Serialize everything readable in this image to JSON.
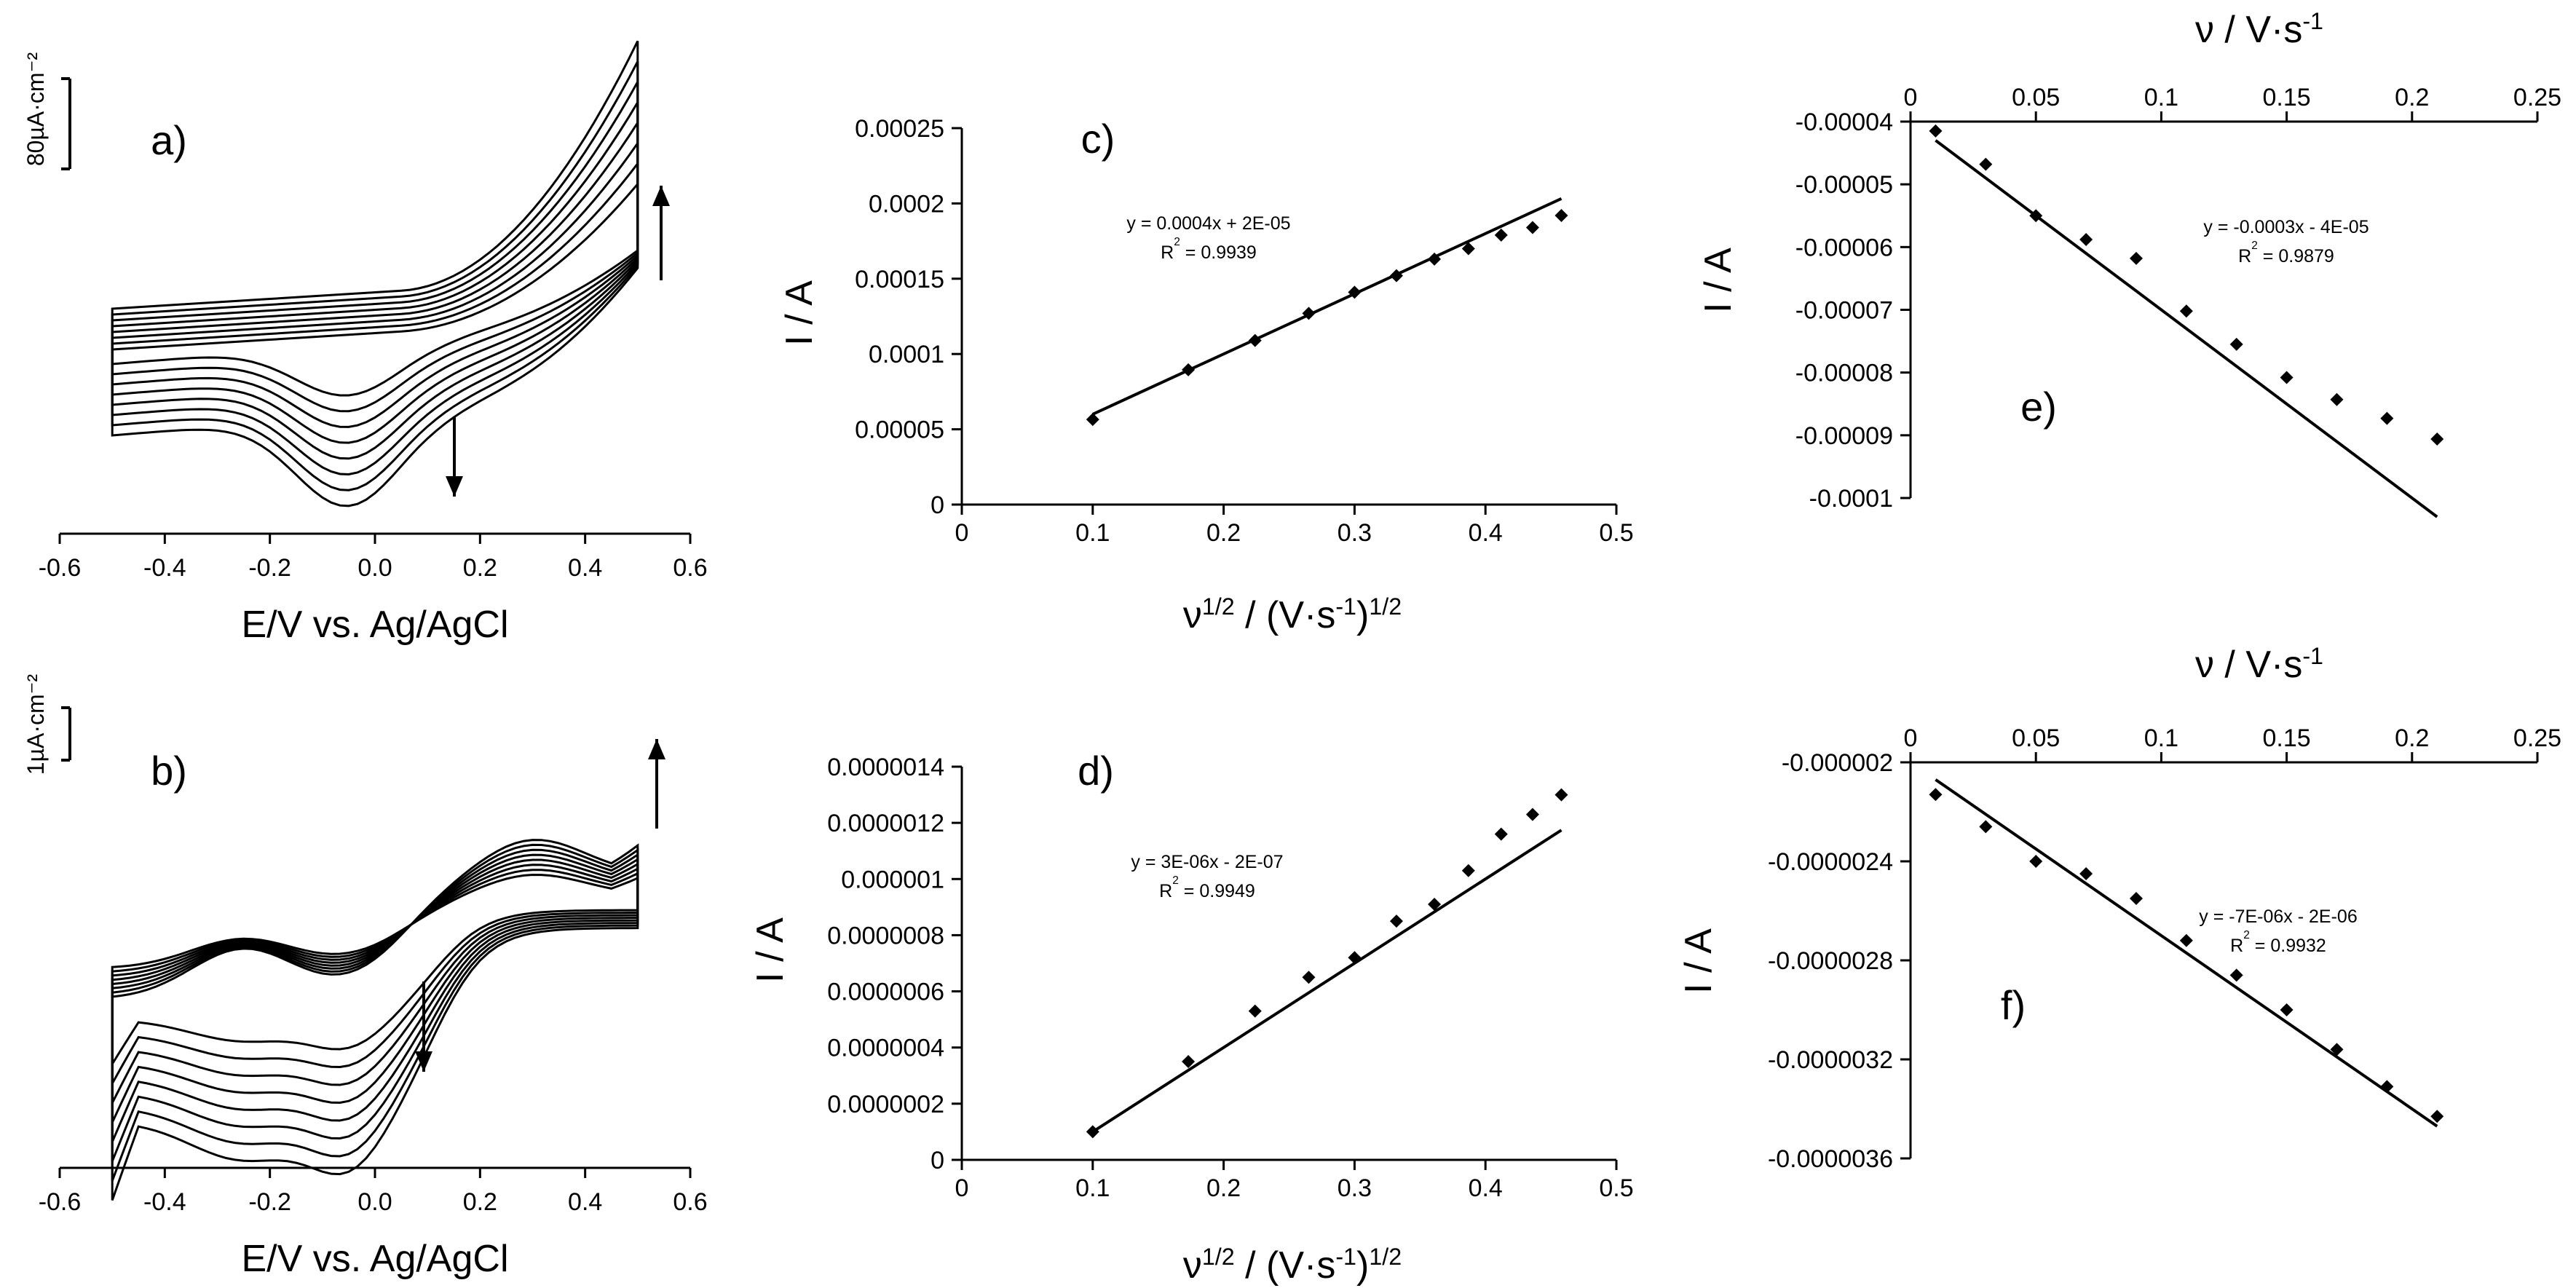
{
  "chart_data": [
    {
      "panel": "a)",
      "type": "line",
      "description_shown": "cyclic voltammograms",
      "xlabel": "E/V vs. Ag/AgCl",
      "xlim": [
        -0.6,
        0.6
      ],
      "xticks": [
        "-0.6",
        "-0.4",
        "-0.2",
        "0.0",
        "0.2",
        "0.4",
        "0.6"
      ],
      "scale_bar_label": "80µA·cm⁻²",
      "arrows": [
        "up",
        "down"
      ]
    },
    {
      "panel": "b)",
      "type": "line",
      "xlabel": "E/V vs. Ag/AgCl",
      "xlim": [
        -0.6,
        0.6
      ],
      "xticks": [
        "-0.6",
        "-0.4",
        "-0.2",
        "0.0",
        "0.2",
        "0.4",
        "0.6"
      ],
      "scale_bar_label": "1µA·cm⁻²",
      "arrows": [
        "up",
        "down"
      ]
    },
    {
      "panel": "c)",
      "type": "scatter",
      "xlabel_main": "ν",
      "xlabel_sup": "1/2",
      "xlabel_rest": "/ (V·s",
      "xlabel_sup2": "-1",
      "xlabel_end": ")",
      "xlabel_sup3": "1/2",
      "ylabel": "I / A",
      "xlim": [
        0,
        0.5
      ],
      "ylim": [
        0,
        0.00025
      ],
      "xticks": [
        "0",
        "0.1",
        "0.2",
        "0.3",
        "0.4",
        "0.5"
      ],
      "yticks": [
        "0",
        "0.00005",
        "0.0001",
        "0.00015",
        "0.0002",
        "0.00025"
      ],
      "x": [
        0.1,
        0.173,
        0.224,
        0.265,
        0.3,
        0.332,
        0.361,
        0.387,
        0.412,
        0.436,
        0.458
      ],
      "y": [
        5.65e-05,
        8.95e-05,
        0.000109,
        0.000127,
        0.000141,
        0.000152,
        0.000163,
        0.00017,
        0.000179,
        0.000184,
        0.000192
      ],
      "trendline": {
        "slope": 0.0004,
        "intercept": 2e-05
      },
      "equation": "y = 0.0004x + 2E-05",
      "r2_label": "R",
      "r2_sup": "2",
      "r2_value": " = 0.9939"
    },
    {
      "panel": "d)",
      "type": "scatter",
      "xlabel_main": "ν",
      "xlabel_sup": "1/2",
      "xlabel_rest": "/ (V·s",
      "xlabel_sup2": "-1",
      "xlabel_end": ")",
      "xlabel_sup3": "1/2",
      "ylabel": "I / A",
      "xlim": [
        0,
        0.5
      ],
      "ylim": [
        0,
        1.4e-06
      ],
      "xticks": [
        "0",
        "0.1",
        "0.2",
        "0.3",
        "0.4",
        "0.5"
      ],
      "yticks": [
        "0",
        "0.0000002",
        "0.0000004",
        "0.0000006",
        "0.0000008",
        "0.000001",
        "0.0000012",
        "0.0000014"
      ],
      "x": [
        0.1,
        0.173,
        0.224,
        0.265,
        0.3,
        0.332,
        0.361,
        0.387,
        0.412,
        0.436,
        0.458
      ],
      "y": [
        1e-07,
        3.5e-07,
        5.3e-07,
        6.5e-07,
        7.2e-07,
        8.5e-07,
        9.1e-07,
        1.03e-06,
        1.16e-06,
        1.23e-06,
        1.3e-06
      ],
      "trendline": {
        "slope": 3e-06,
        "intercept": -2e-07
      },
      "equation": "y = 3E-06x - 2E-07",
      "r2_label": "R",
      "r2_sup": "2",
      "r2_value": " = 0.9949"
    },
    {
      "panel": "e)",
      "type": "scatter",
      "xlabel_main": "ν",
      "xlabel_rest": "/ V·s",
      "xlabel_sup": "-1",
      "ylabel": "I / A",
      "xlim": [
        0,
        0.25
      ],
      "ylim": [
        -0.0001,
        -4e-05
      ],
      "xticks": [
        "0",
        "0.05",
        "0.1",
        "0.15",
        "0.2",
        "0.25"
      ],
      "yticks": [
        "-0.00004",
        "-0.00005",
        "-0.00006",
        "-0.00007",
        "-0.00008",
        "-0.00009",
        "-0.0001"
      ],
      "x": [
        0.01,
        0.03,
        0.05,
        0.07,
        0.09,
        0.11,
        0.13,
        0.15,
        0.17,
        0.19,
        0.21
      ],
      "y": [
        -4.15e-05,
        -4.68e-05,
        -5.5e-05,
        -5.88e-05,
        -6.18e-05,
        -7.02e-05,
        -7.55e-05,
        -8.08e-05,
        -8.43e-05,
        -8.73e-05,
        -9.06e-05
      ],
      "trendline": {
        "slope": -0.0003,
        "intercept": -4e-05
      },
      "equation": "y = -0.0003x - 4E-05",
      "r2_label": "R",
      "r2_sup": "2",
      "r2_value": " = 0.9879"
    },
    {
      "panel": "f)",
      "type": "scatter",
      "xlabel_main": "ν",
      "xlabel_rest": "/ V·s",
      "xlabel_sup": "-1",
      "ylabel": "I / A",
      "xlim": [
        0,
        0.25
      ],
      "ylim": [
        -3.6e-06,
        -2e-06
      ],
      "xticks": [
        "0",
        "0.05",
        "0.1",
        "0.15",
        "0.2",
        "0.25"
      ],
      "yticks": [
        "-0.000002",
        "-0.0000024",
        "-0.0000028",
        "-0.0000032",
        "-0.0000036"
      ],
      "x": [
        0.01,
        0.03,
        0.05,
        0.07,
        0.09,
        0.11,
        0.13,
        0.15,
        0.17,
        0.19,
        0.21
      ],
      "y": [
        -2.13e-06,
        -2.26e-06,
        -2.4e-06,
        -2.45e-06,
        -2.55e-06,
        -2.72e-06,
        -2.86e-06,
        -3e-06,
        -3.16e-06,
        -3.31e-06,
        -3.43e-06
      ],
      "trendline": {
        "slope": -7e-06,
        "intercept": -2e-06
      },
      "equation": "y = -7E-06x - 2E-06",
      "r2_label": "R",
      "r2_sup": "2",
      "r2_value": " = 0.9932"
    }
  ]
}
